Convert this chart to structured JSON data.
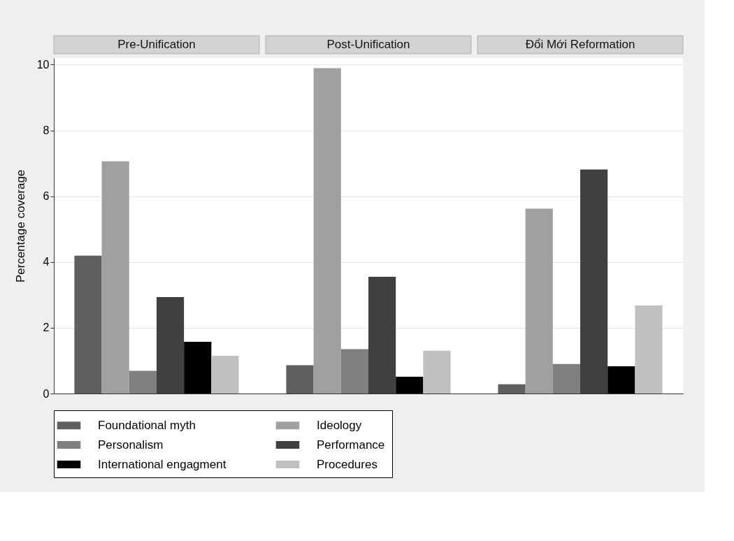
{
  "chart_data": {
    "type": "bar",
    "ylabel": "Percentage coverage",
    "categories": [
      "Pre-Unification",
      "Post-Unification",
      "Đổi Mới Reformation"
    ],
    "ylim": [
      0,
      10.2
    ],
    "yticks": [
      0,
      2,
      4,
      6,
      8,
      10
    ],
    "grid": "y",
    "legend": "bottom",
    "series": [
      {
        "name": "Foundational myth",
        "color": "#5f5f5f",
        "values": [
          4.19,
          0.86,
          0.28
        ]
      },
      {
        "name": "Ideology",
        "color": "#a0a0a0",
        "values": [
          7.06,
          9.89,
          5.62
        ]
      },
      {
        "name": "Personalism",
        "color": "#808080",
        "values": [
          0.69,
          1.35,
          0.9
        ]
      },
      {
        "name": "Performance",
        "color": "#404040",
        "values": [
          2.93,
          3.55,
          6.81
        ]
      },
      {
        "name": "International engagment",
        "color": "#000000",
        "values": [
          1.57,
          0.51,
          0.83
        ]
      },
      {
        "name": "Procedures",
        "color": "#c0c0c0",
        "values": [
          1.15,
          1.3,
          2.68
        ]
      }
    ]
  }
}
